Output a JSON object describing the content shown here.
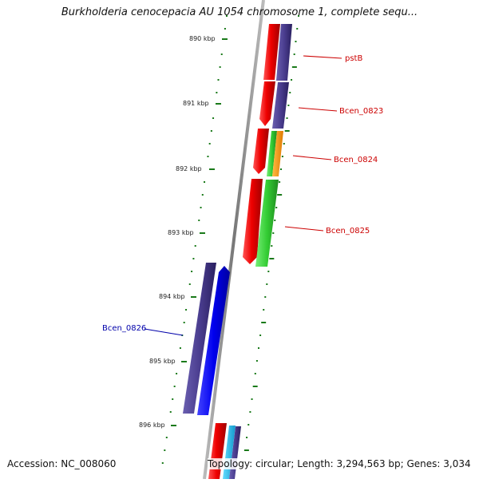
{
  "title": "Burkholderia cenocepacia AU 1054 chromosome 1, complete sequ...",
  "accession": "Accession: NC_008060",
  "topology": "Topology: circular; Length: 3,294,563 bp; Genes: 3,034",
  "scale_labels": [
    "890 kbp",
    "891 kbp",
    "892 kbp",
    "893 kbp",
    "894 kbp",
    "895 kbp",
    "896 kbp"
  ],
  "gene_labels": [
    {
      "name": "pstB",
      "color": "#cc0000"
    },
    {
      "name": "Bcen_0823",
      "color": "#cc0000"
    },
    {
      "name": "Bcen_0824",
      "color": "#cc0000"
    },
    {
      "name": "Bcen_0825",
      "color": "#cc0000"
    },
    {
      "name": "Bcen_0826",
      "color": "#0000aa"
    }
  ],
  "colors": {
    "backbone": "#888888",
    "tick": "#1a7a1a",
    "cds_red": "#ee0000",
    "gene_purple": "#4a3d8f",
    "gene_blue": "#0000ee",
    "gene_green": "#33cc33",
    "gene_orange": "#ff9900",
    "gene_cyan": "#22bbee"
  }
}
